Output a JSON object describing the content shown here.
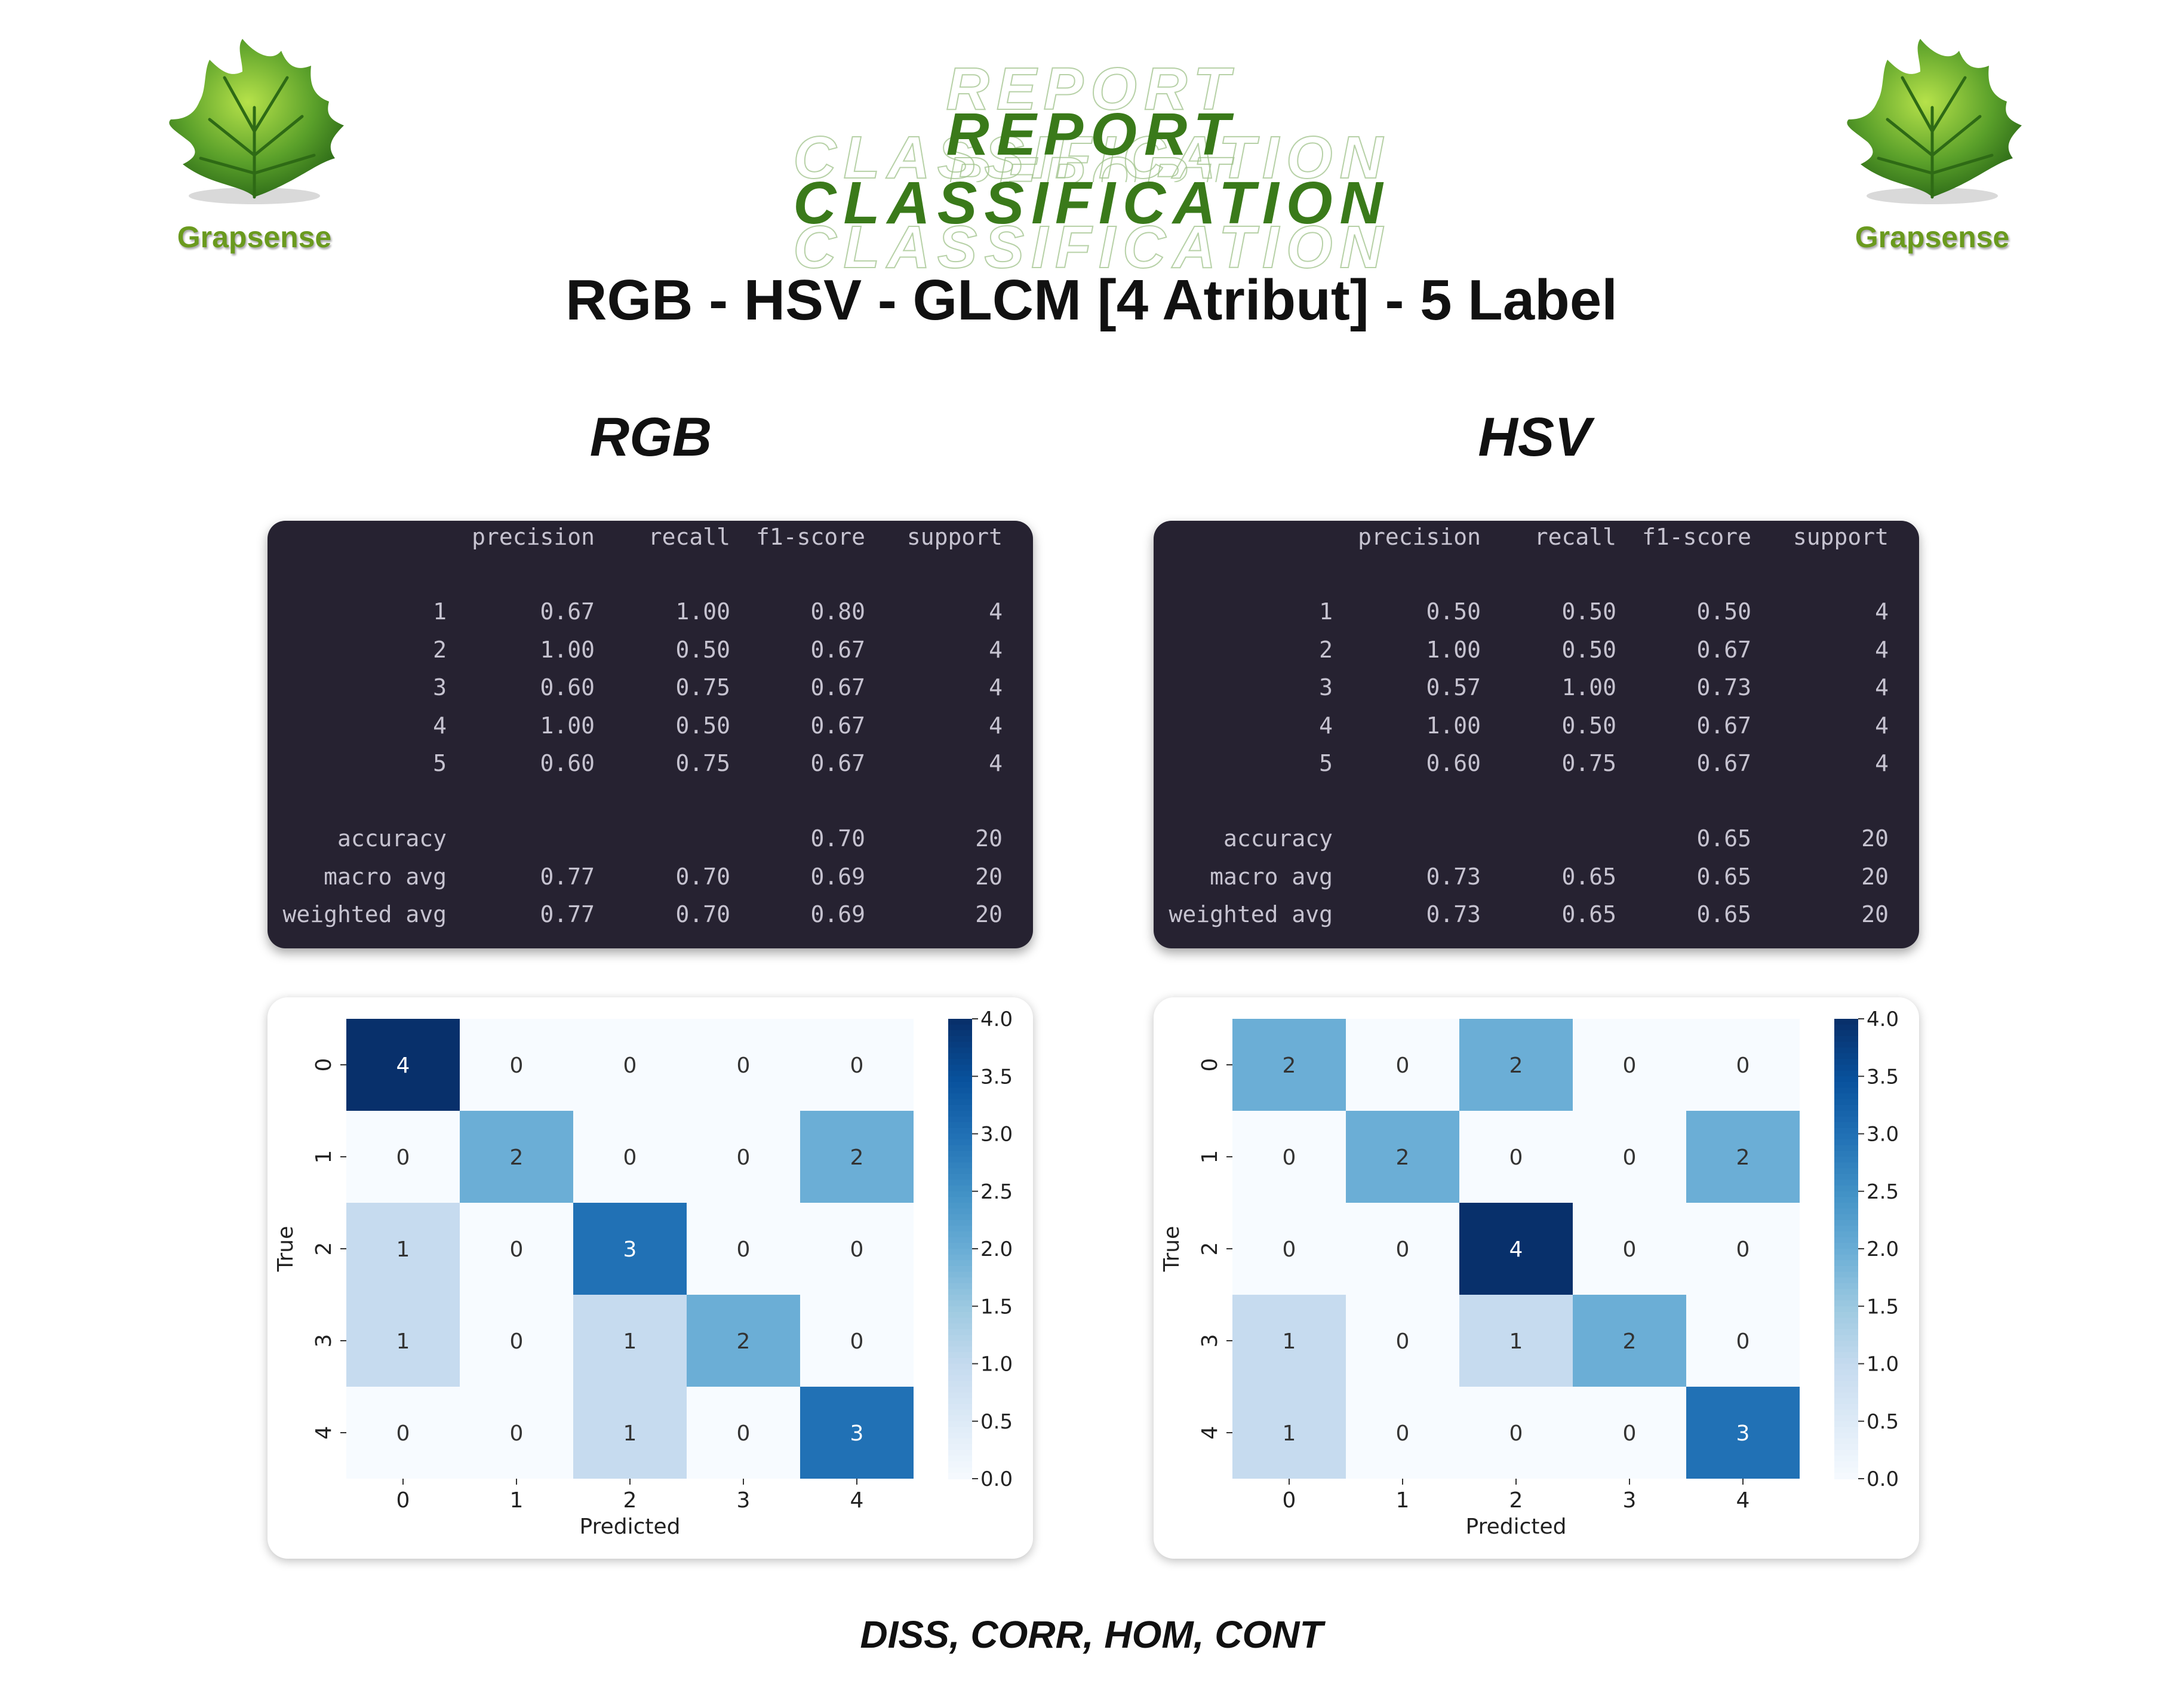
{
  "brand": {
    "name": "Grapsense",
    "logo_icon": "grape-leaf-icon",
    "leaf_color": "#5aa02a"
  },
  "header": {
    "title": "REPORT CLASSIFICATION",
    "subtitle": "RGB - HSV - GLCM [4 Atribut] - 5 Label",
    "title_color": "#3a7a1a"
  },
  "reports": [
    {
      "title": "RGB",
      "columns": [
        "precision",
        "recall",
        "f1-score",
        "support"
      ],
      "rows": [
        {
          "label": "1",
          "precision": "0.67",
          "recall": "1.00",
          "f1": "0.80",
          "support": "4"
        },
        {
          "label": "2",
          "precision": "1.00",
          "recall": "0.50",
          "f1": "0.67",
          "support": "4"
        },
        {
          "label": "3",
          "precision": "0.60",
          "recall": "0.75",
          "f1": "0.67",
          "support": "4"
        },
        {
          "label": "4",
          "precision": "1.00",
          "recall": "0.50",
          "f1": "0.67",
          "support": "4"
        },
        {
          "label": "5",
          "precision": "0.60",
          "recall": "0.75",
          "f1": "0.67",
          "support": "4"
        }
      ],
      "summary": [
        {
          "label": "accuracy",
          "precision": "",
          "recall": "",
          "f1": "0.70",
          "support": "20"
        },
        {
          "label": "macro avg",
          "precision": "0.77",
          "recall": "0.70",
          "f1": "0.69",
          "support": "20"
        },
        {
          "label": "weighted avg",
          "precision": "0.77",
          "recall": "0.70",
          "f1": "0.69",
          "support": "20"
        }
      ]
    },
    {
      "title": "HSV",
      "columns": [
        "precision",
        "recall",
        "f1-score",
        "support"
      ],
      "rows": [
        {
          "label": "1",
          "precision": "0.50",
          "recall": "0.50",
          "f1": "0.50",
          "support": "4"
        },
        {
          "label": "2",
          "precision": "1.00",
          "recall": "0.50",
          "f1": "0.67",
          "support": "4"
        },
        {
          "label": "3",
          "precision": "0.57",
          "recall": "1.00",
          "f1": "0.73",
          "support": "4"
        },
        {
          "label": "4",
          "precision": "1.00",
          "recall": "0.50",
          "f1": "0.67",
          "support": "4"
        },
        {
          "label": "5",
          "precision": "0.60",
          "recall": "0.75",
          "f1": "0.67",
          "support": "4"
        }
      ],
      "summary": [
        {
          "label": "accuracy",
          "precision": "",
          "recall": "",
          "f1": "0.65",
          "support": "20"
        },
        {
          "label": "macro avg",
          "precision": "0.73",
          "recall": "0.65",
          "f1": "0.65",
          "support": "20"
        },
        {
          "label": "weighted avg",
          "precision": "0.73",
          "recall": "0.65",
          "f1": "0.65",
          "support": "20"
        }
      ]
    }
  ],
  "chart_data": [
    {
      "type": "heatmap",
      "xlabel": "Predicted",
      "ylabel": "True",
      "x_categories": [
        "0",
        "1",
        "2",
        "3",
        "4"
      ],
      "y_categories": [
        "0",
        "1",
        "2",
        "3",
        "4"
      ],
      "values": [
        [
          4,
          0,
          0,
          0,
          0
        ],
        [
          0,
          2,
          0,
          0,
          2
        ],
        [
          1,
          0,
          3,
          0,
          0
        ],
        [
          1,
          0,
          1,
          2,
          0
        ],
        [
          0,
          0,
          1,
          0,
          3
        ]
      ],
      "colorbar": {
        "min": 0.0,
        "max": 4.0,
        "ticks": [
          "0.0",
          "0.5",
          "1.0",
          "1.5",
          "2.0",
          "2.5",
          "3.0",
          "3.5",
          "4.0"
        ]
      },
      "colormap": "Blues"
    },
    {
      "type": "heatmap",
      "xlabel": "Predicted",
      "ylabel": "True",
      "x_categories": [
        "0",
        "1",
        "2",
        "3",
        "4"
      ],
      "y_categories": [
        "0",
        "1",
        "2",
        "3",
        "4"
      ],
      "values": [
        [
          2,
          0,
          2,
          0,
          0
        ],
        [
          0,
          2,
          0,
          0,
          2
        ],
        [
          0,
          0,
          4,
          0,
          0
        ],
        [
          1,
          0,
          1,
          2,
          0
        ],
        [
          1,
          0,
          0,
          0,
          3
        ]
      ],
      "colorbar": {
        "min": 0.0,
        "max": 4.0,
        "ticks": [
          "0.0",
          "0.5",
          "1.0",
          "1.5",
          "2.0",
          "2.5",
          "3.0",
          "3.5",
          "4.0"
        ]
      },
      "colormap": "Blues"
    }
  ],
  "footer": "DISS, CORR, HOM, CONT"
}
